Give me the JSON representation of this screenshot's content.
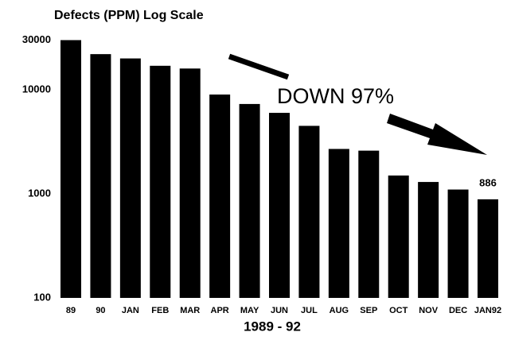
{
  "chart_data": {
    "type": "bar",
    "title": "Defects (PPM) Log Scale",
    "categories": [
      "89",
      "90",
      "JAN",
      "FEB",
      "MAR",
      "APR",
      "MAY",
      "JUN",
      "JUL",
      "AUG",
      "SEP",
      "OCT",
      "NOV",
      "DEC",
      "JAN92"
    ],
    "values": [
      30000,
      22000,
      20000,
      17000,
      16000,
      9000,
      7300,
      6000,
      4500,
      2700,
      2600,
      1500,
      1300,
      1100,
      886
    ],
    "value_labels": [
      null,
      null,
      null,
      null,
      null,
      null,
      null,
      null,
      null,
      null,
      null,
      null,
      null,
      null,
      "886"
    ],
    "color": "#000000",
    "ylim": [
      100,
      35000
    ],
    "yticks": [
      100,
      1000,
      10000,
      30000
    ],
    "log_scale": true,
    "grid": false,
    "xlabel": "1989 - 92",
    "annotation": "DOWN 97%"
  }
}
